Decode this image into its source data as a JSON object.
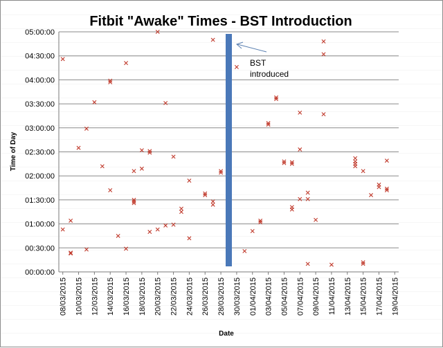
{
  "chart_data": {
    "type": "scatter",
    "title": "Fitbit \"Awake\" Times - BST Introduction",
    "xlabel": "Date",
    "ylabel": "Time of Day",
    "ylim": [
      "00:00:00",
      "05:00:00"
    ],
    "y_ticks": [
      "00:00:00",
      "00:30:00",
      "01:00:00",
      "01:30:00",
      "02:00:00",
      "02:30:00",
      "03:00:00",
      "03:30:00",
      "04:00:00",
      "04:30:00",
      "05:00:00"
    ],
    "x_ticks": [
      "08/03/2015",
      "10/03/2015",
      "12/03/2015",
      "14/03/2015",
      "16/03/2015",
      "18/03/2015",
      "20/03/2015",
      "22/03/2015",
      "24/03/2015",
      "26/03/2015",
      "28/03/2015",
      "30/03/2015",
      "01/04/2015",
      "03/04/2015",
      "05/04/2015",
      "07/04/2015",
      "09/04/2015",
      "11/04/2015",
      "13/04/2015",
      "15/04/2015",
      "17/04/2015",
      "19/04/2015"
    ],
    "grid": "horizontal",
    "marker": "x",
    "marker_color": "#c0392b",
    "bst_line": {
      "date": "29/03/2015",
      "color": "#4a78b8"
    },
    "annotation": {
      "lines": [
        "BST",
        "introduced"
      ]
    },
    "series": [
      {
        "points": [
          [
            "08/03/2015",
            "04:26:00"
          ],
          [
            "08/03/2015",
            "00:53:00"
          ],
          [
            "09/03/2015",
            "01:04:00"
          ],
          [
            "09/03/2015",
            "00:24:00"
          ],
          [
            "09/03/2015",
            "00:23:00"
          ],
          [
            "10/03/2015",
            "02:35:00"
          ],
          [
            "11/03/2015",
            "02:59:00"
          ],
          [
            "11/03/2015",
            "00:28:00"
          ],
          [
            "12/03/2015",
            "03:32:00"
          ],
          [
            "13/03/2015",
            "02:12:00"
          ],
          [
            "14/03/2015",
            "01:42:00"
          ],
          [
            "14/03/2015",
            "03:59:00"
          ],
          [
            "14/03/2015",
            "03:57:00"
          ],
          [
            "15/03/2015",
            "00:45:00"
          ],
          [
            "16/03/2015",
            "04:21:00"
          ],
          [
            "16/03/2015",
            "00:29:00"
          ],
          [
            "17/03/2015",
            "02:06:00"
          ],
          [
            "17/03/2015",
            "01:30:00"
          ],
          [
            "17/03/2015",
            "01:28:00"
          ],
          [
            "17/03/2015",
            "01:26:00"
          ],
          [
            "18/03/2015",
            "02:32:00"
          ],
          [
            "18/03/2015",
            "02:09:00"
          ],
          [
            "19/03/2015",
            "02:29:00"
          ],
          [
            "19/03/2015",
            "02:31:00"
          ],
          [
            "19/03/2015",
            "00:50:00"
          ],
          [
            "20/03/2015",
            "05:00:00"
          ],
          [
            "20/03/2015",
            "00:53:00"
          ],
          [
            "21/03/2015",
            "03:31:00"
          ],
          [
            "21/03/2015",
            "00:58:00"
          ],
          [
            "22/03/2015",
            "02:24:00"
          ],
          [
            "22/03/2015",
            "00:59:00"
          ],
          [
            "23/03/2015",
            "01:15:00"
          ],
          [
            "23/03/2015",
            "01:19:00"
          ],
          [
            "24/03/2015",
            "01:54:00"
          ],
          [
            "24/03/2015",
            "00:42:00"
          ],
          [
            "26/03/2015",
            "01:36:00"
          ],
          [
            "26/03/2015",
            "01:38:00"
          ],
          [
            "27/03/2015",
            "04:50:00"
          ],
          [
            "27/03/2015",
            "01:24:00"
          ],
          [
            "27/03/2015",
            "01:28:00"
          ],
          [
            "28/03/2015",
            "02:04:00"
          ],
          [
            "28/03/2015",
            "02:06:00"
          ],
          [
            "30/03/2015",
            "04:16:00"
          ],
          [
            "31/03/2015",
            "00:26:00"
          ],
          [
            "01/04/2015",
            "00:51:00"
          ],
          [
            "02/04/2015",
            "01:02:00"
          ],
          [
            "02/04/2015",
            "01:04:00"
          ],
          [
            "03/04/2015",
            "03:04:00"
          ],
          [
            "03/04/2015",
            "03:06:00"
          ],
          [
            "04/04/2015",
            "03:36:00"
          ],
          [
            "04/04/2015",
            "03:38:00"
          ],
          [
            "05/04/2015",
            "02:16:00"
          ],
          [
            "05/04/2015",
            "02:18:00"
          ],
          [
            "06/04/2015",
            "02:15:00"
          ],
          [
            "06/04/2015",
            "02:17:00"
          ],
          [
            "06/04/2015",
            "01:18:00"
          ],
          [
            "06/04/2015",
            "01:21:00"
          ],
          [
            "07/04/2015",
            "03:19:00"
          ],
          [
            "07/04/2015",
            "02:33:00"
          ],
          [
            "07/04/2015",
            "01:31:00"
          ],
          [
            "08/04/2015",
            "01:39:00"
          ],
          [
            "08/04/2015",
            "01:31:00"
          ],
          [
            "08/04/2015",
            "00:10:00"
          ],
          [
            "09/04/2015",
            "01:05:00"
          ],
          [
            "10/04/2015",
            "04:48:00"
          ],
          [
            "10/04/2015",
            "04:32:00"
          ],
          [
            "10/04/2015",
            "03:17:00"
          ],
          [
            "11/04/2015",
            "00:09:00"
          ],
          [
            "14/04/2015",
            "02:22:00"
          ],
          [
            "14/04/2015",
            "02:18:00"
          ],
          [
            "14/04/2015",
            "02:15:00"
          ],
          [
            "14/04/2015",
            "02:12:00"
          ],
          [
            "15/04/2015",
            "00:10:00"
          ],
          [
            "15/04/2015",
            "00:12:00"
          ],
          [
            "15/04/2015",
            "02:06:00"
          ],
          [
            "16/04/2015",
            "01:36:00"
          ],
          [
            "17/04/2015",
            "01:46:00"
          ],
          [
            "17/04/2015",
            "01:49:00"
          ],
          [
            "18/04/2015",
            "01:42:00"
          ],
          [
            "18/04/2015",
            "01:44:00"
          ],
          [
            "18/04/2015",
            "02:19:00"
          ]
        ]
      }
    ]
  }
}
